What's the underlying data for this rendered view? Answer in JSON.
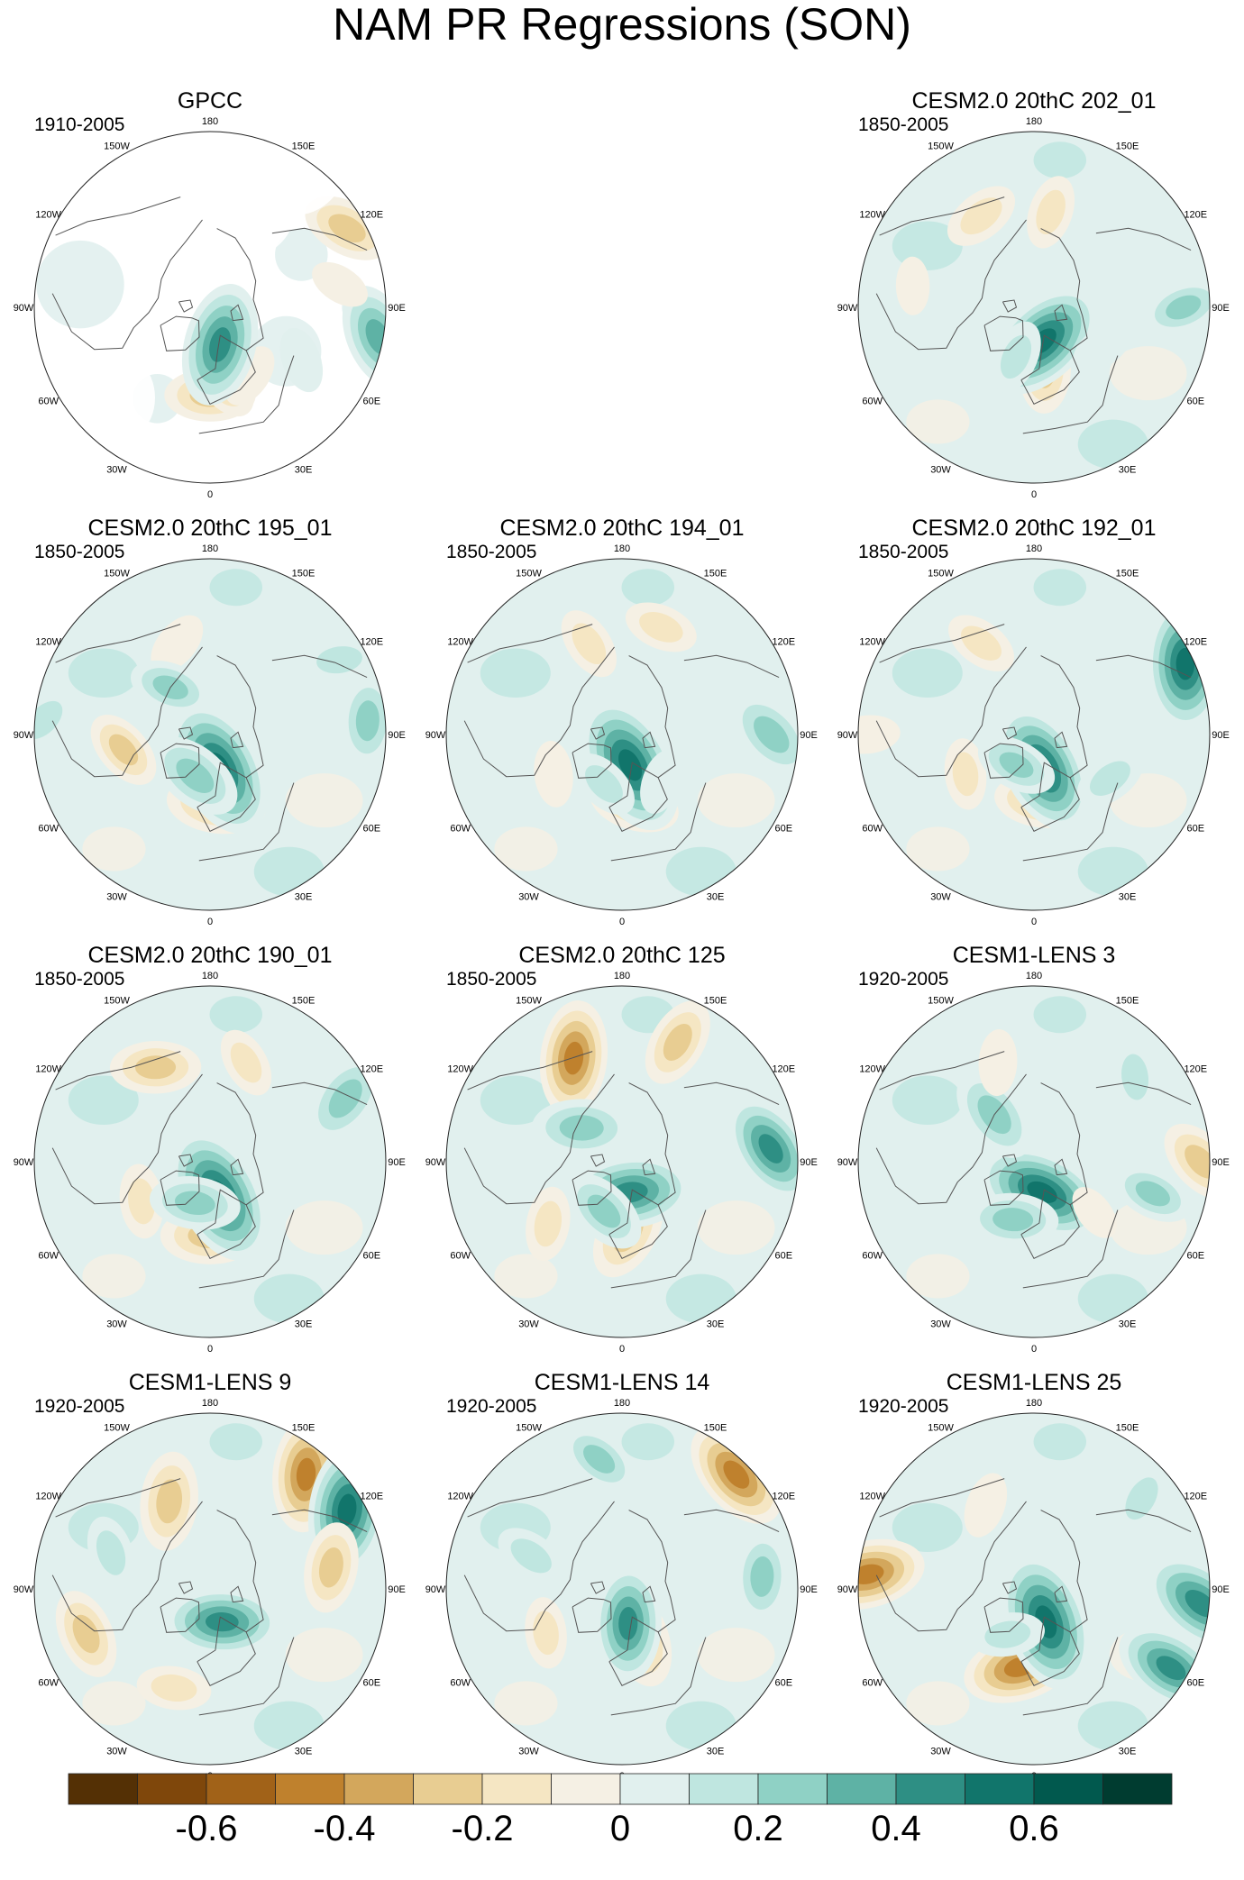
{
  "chart_data": {
    "type": "polar-map-panels",
    "title": "NAM PR Regressions (SON)",
    "projection": "North polar stereographic, 0° at bottom, 180 at top",
    "longitude_labels": [
      "180",
      "150E",
      "120E",
      "90E",
      "60E",
      "30E",
      "0",
      "30W",
      "60W",
      "90W",
      "120W",
      "150W"
    ],
    "panels": [
      {
        "id": "gpcc",
        "title": "GPCC",
        "period": "1910-2005",
        "observational": true,
        "features": [
          {
            "lon": 0,
            "rlat": 0.5,
            "v": -0.3
          },
          {
            "lon": 10,
            "rlat": 0.42,
            "v": -0.25
          },
          {
            "lon": 30,
            "rlat": 0.45,
            "v": -0.15
          },
          {
            "lon": 80,
            "rlat": 0.97,
            "v": 0.4
          },
          {
            "lon": 60,
            "rlat": 0.6,
            "v": 0.15
          },
          {
            "lon": 120,
            "rlat": 0.9,
            "v": -0.3
          },
          {
            "lon": 100,
            "rlat": 0.75,
            "v": -0.12
          },
          {
            "lon": 15,
            "rlat": 0.22,
            "v": 0.5
          }
        ]
      },
      {
        "id": "c202",
        "title": "CESM2.0 20thC 202_01",
        "period": "1850-2005",
        "features": [
          {
            "lon": 170,
            "rlat": 0.55,
            "v": -0.2
          },
          {
            "lon": -150,
            "rlat": 0.6,
            "v": -0.22
          },
          {
            "lon": 10,
            "rlat": 0.35,
            "v": -0.3
          },
          {
            "lon": 15,
            "rlat": 0.2,
            "v": 0.55
          },
          {
            "lon": -20,
            "rlat": 0.3,
            "v": 0.2
          },
          {
            "lon": 90,
            "rlat": 0.85,
            "v": 0.25
          },
          {
            "lon": 60,
            "rlat": 0.45,
            "v": 0.15
          },
          {
            "lon": -100,
            "rlat": 0.7,
            "v": -0.1
          },
          {
            "lon": 130,
            "rlat": 0.8,
            "v": 0.15
          }
        ]
      },
      {
        "id": "c195",
        "title": "CESM2.0 20thC 195_01",
        "period": "1850-2005",
        "features": [
          {
            "lon": 5,
            "rlat": 0.4,
            "v": -0.35
          },
          {
            "lon": 15,
            "rlat": 0.2,
            "v": 0.6
          },
          {
            "lon": -20,
            "rlat": 0.25,
            "v": 0.35
          },
          {
            "lon": 95,
            "rlat": 0.9,
            "v": 0.3
          },
          {
            "lon": 120,
            "rlat": 0.85,
            "v": 0.2
          },
          {
            "lon": -80,
            "rlat": 0.5,
            "v": -0.25
          },
          {
            "lon": -160,
            "rlat": 0.55,
            "v": -0.15
          },
          {
            "lon": -140,
            "rlat": 0.35,
            "v": 0.25
          },
          {
            "lon": -95,
            "rlat": 0.95,
            "v": 0.2
          }
        ]
      },
      {
        "id": "c194",
        "title": "CESM2.0 20thC 194_01",
        "period": "1850-2005",
        "features": [
          {
            "lon": 10,
            "rlat": 0.4,
            "v": -0.3
          },
          {
            "lon": 15,
            "rlat": 0.18,
            "v": 0.6
          },
          {
            "lon": 90,
            "rlat": 0.85,
            "v": 0.35
          },
          {
            "lon": 160,
            "rlat": 0.65,
            "v": -0.2
          },
          {
            "lon": -160,
            "rlat": 0.55,
            "v": -0.2
          },
          {
            "lon": -60,
            "rlat": 0.45,
            "v": -0.15
          },
          {
            "lon": 40,
            "rlat": 0.35,
            "v": 0.15
          },
          {
            "lon": -20,
            "rlat": 0.3,
            "v": 0.2
          }
        ]
      },
      {
        "id": "c192",
        "title": "CESM2.0 20thC 192_01",
        "period": "1850-2005",
        "features": [
          {
            "lon": 5,
            "rlat": 0.38,
            "v": -0.3
          },
          {
            "lon": 15,
            "rlat": 0.2,
            "v": 0.55
          },
          {
            "lon": 115,
            "rlat": 0.95,
            "v": 0.55
          },
          {
            "lon": -150,
            "rlat": 0.6,
            "v": -0.2
          },
          {
            "lon": -90,
            "rlat": 0.95,
            "v": -0.15
          },
          {
            "lon": -60,
            "rlat": 0.45,
            "v": -0.18
          },
          {
            "lon": 60,
            "rlat": 0.5,
            "v": 0.2
          },
          {
            "lon": -30,
            "rlat": 0.2,
            "v": 0.25
          }
        ]
      },
      {
        "id": "c190",
        "title": "CESM2.0 20thC 190_01",
        "period": "1850-2005",
        "features": [
          {
            "lon": 0,
            "rlat": 0.42,
            "v": -0.35
          },
          {
            "lon": 15,
            "rlat": 0.2,
            "v": 0.6
          },
          {
            "lon": -150,
            "rlat": 0.62,
            "v": -0.3
          },
          {
            "lon": 115,
            "rlat": 0.85,
            "v": 0.35
          },
          {
            "lon": 160,
            "rlat": 0.6,
            "v": -0.18
          },
          {
            "lon": -60,
            "rlat": 0.45,
            "v": -0.2
          },
          {
            "lon": -20,
            "rlat": 0.25,
            "v": 0.3
          }
        ]
      },
      {
        "id": "c125",
        "title": "CESM2.0 20thC 125",
        "period": "1850-2005",
        "features": [
          {
            "lon": -155,
            "rlat": 0.65,
            "v": -0.45
          },
          {
            "lon": 155,
            "rlat": 0.75,
            "v": -0.3
          },
          {
            "lon": 95,
            "rlat": 0.85,
            "v": 0.45
          },
          {
            "lon": 5,
            "rlat": 0.4,
            "v": -0.35
          },
          {
            "lon": 15,
            "rlat": 0.18,
            "v": 0.5
          },
          {
            "lon": -50,
            "rlat": 0.55,
            "v": -0.2
          },
          {
            "lon": -130,
            "rlat": 0.3,
            "v": 0.35
          },
          {
            "lon": -20,
            "rlat": 0.3,
            "v": 0.3
          }
        ]
      },
      {
        "id": "lens3",
        "title": "CESM1-LENS 3",
        "period": "1920-2005",
        "features": [
          {
            "lon": 15,
            "rlat": 0.18,
            "v": 0.55
          },
          {
            "lon": -20,
            "rlat": 0.35,
            "v": 0.3
          },
          {
            "lon": 90,
            "rlat": 0.95,
            "v": -0.3
          },
          {
            "lon": -140,
            "rlat": 0.35,
            "v": 0.35
          },
          {
            "lon": 50,
            "rlat": 0.45,
            "v": -0.1
          },
          {
            "lon": -160,
            "rlat": 0.6,
            "v": -0.15
          },
          {
            "lon": 130,
            "rlat": 0.75,
            "v": 0.2
          },
          {
            "lon": 75,
            "rlat": 0.7,
            "v": 0.25
          }
        ]
      },
      {
        "id": "lens9",
        "title": "CESM1-LENS 9",
        "period": "1920-2005",
        "features": [
          {
            "lon": -155,
            "rlat": 0.55,
            "v": -0.35
          },
          {
            "lon": 140,
            "rlat": 0.85,
            "v": -0.45
          },
          {
            "lon": 120,
            "rlat": 0.9,
            "v": 0.55
          },
          {
            "lon": 100,
            "rlat": 0.7,
            "v": -0.3
          },
          {
            "lon": 20,
            "rlat": 0.2,
            "v": 0.45
          },
          {
            "lon": -70,
            "rlat": 0.75,
            "v": -0.3
          },
          {
            "lon": -20,
            "rlat": 0.6,
            "v": -0.2
          },
          {
            "lon": -110,
            "rlat": 0.6,
            "v": 0.2
          }
        ]
      },
      {
        "id": "lens14",
        "title": "CESM1-LENS 14",
        "period": "1920-2005",
        "features": [
          {
            "lon": 135,
            "rlat": 0.92,
            "v": -0.45
          },
          {
            "lon": 20,
            "rlat": 0.3,
            "v": -0.35
          },
          {
            "lon": 10,
            "rlat": 0.2,
            "v": 0.45
          },
          {
            "lon": 95,
            "rlat": 0.8,
            "v": 0.3
          },
          {
            "lon": -170,
            "rlat": 0.75,
            "v": 0.25
          },
          {
            "lon": -60,
            "rlat": 0.5,
            "v": -0.18
          },
          {
            "lon": -110,
            "rlat": 0.55,
            "v": 0.2
          }
        ]
      },
      {
        "id": "lens25",
        "title": "CESM1-LENS 25",
        "period": "1920-2005",
        "features": [
          {
            "lon": -10,
            "rlat": 0.45,
            "v": -0.45
          },
          {
            "lon": 20,
            "rlat": 0.2,
            "v": 0.6
          },
          {
            "lon": 85,
            "rlat": 0.95,
            "v": 0.5
          },
          {
            "lon": 60,
            "rlat": 0.9,
            "v": 0.45
          },
          {
            "lon": -95,
            "rlat": 0.95,
            "v": -0.45
          },
          {
            "lon": -150,
            "rlat": 0.55,
            "v": -0.15
          },
          {
            "lon": -30,
            "rlat": 0.3,
            "v": 0.2
          },
          {
            "lon": 130,
            "rlat": 0.8,
            "v": 0.2
          }
        ]
      }
    ],
    "colorbar": {
      "levels": [
        -0.7,
        -0.6,
        -0.5,
        -0.4,
        -0.3,
        -0.2,
        -0.1,
        0,
        0.1,
        0.2,
        0.3,
        0.4,
        0.5,
        0.6
      ],
      "colors": [
        "#543005",
        "#7f470b",
        "#a16218",
        "#bf812d",
        "#d3a75c",
        "#e8cd92",
        "#f5e6c3",
        "#f5f0e4",
        "#e1f0ee",
        "#bfe6e0",
        "#8fd1c5",
        "#5eb2a5",
        "#2e8f84",
        "#11756b",
        "#01594e",
        "#003c30"
      ],
      "tick_labels": [
        "-0.6",
        "-0.4",
        "-0.2",
        "0",
        "0.2",
        "0.4",
        "0.6"
      ],
      "tick_values": [
        -0.6,
        -0.4,
        -0.2,
        0,
        0.2,
        0.4,
        0.6
      ]
    }
  }
}
